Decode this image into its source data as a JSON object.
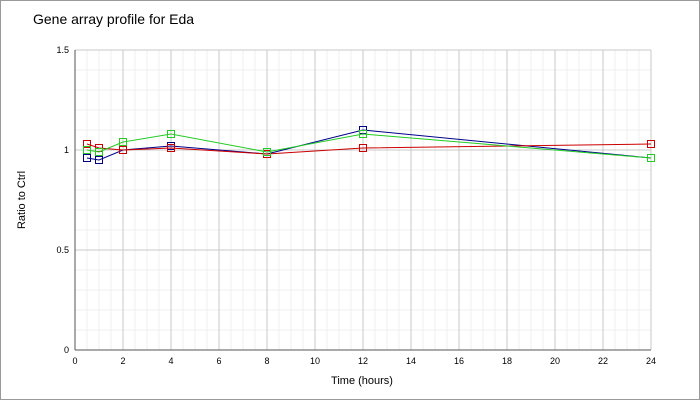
{
  "chart_data": {
    "type": "line",
    "title": "Gene array profile for Eda",
    "xlabel": "Time (hours)",
    "ylabel": "Ratio to Ctrl",
    "xlim": [
      0,
      24
    ],
    "ylim": [
      0,
      1.5
    ],
    "xticks": [
      "0",
      "2",
      "4",
      "6",
      "8",
      "10",
      "12",
      "14",
      "16",
      "18",
      "20",
      "22",
      "24"
    ],
    "yticks": [
      "0",
      "0.5",
      "1",
      "1.5"
    ],
    "grid": true,
    "legend": "none",
    "series": [
      {
        "color": "#00008b",
        "x": [
          0.5,
          1,
          2,
          4,
          8,
          12,
          24
        ],
        "y": [
          0.96,
          0.95,
          1.0,
          1.02,
          0.98,
          1.1,
          0.96
        ]
      },
      {
        "color": "#cc0000",
        "x": [
          0.5,
          1,
          2,
          4,
          8,
          12,
          24
        ],
        "y": [
          1.03,
          1.01,
          1.0,
          1.01,
          0.98,
          1.01,
          1.03
        ]
      },
      {
        "color": "#22cc22",
        "x": [
          0.5,
          1,
          2,
          4,
          8,
          12,
          24
        ],
        "y": [
          1.0,
          0.99,
          1.04,
          1.08,
          0.99,
          1.08,
          0.96
        ]
      }
    ]
  }
}
